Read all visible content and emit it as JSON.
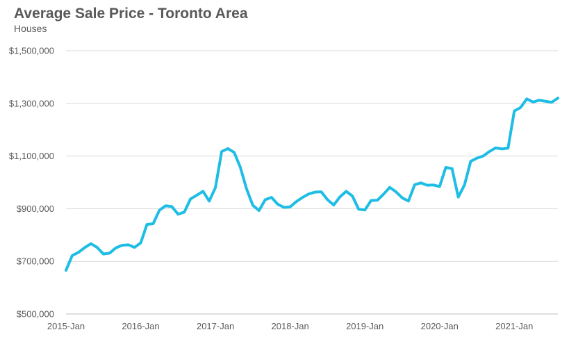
{
  "chart_data": {
    "type": "line",
    "title": "Average Sale Price - Toronto Area",
    "subtitle": "Houses",
    "xlabel": "",
    "ylabel": "",
    "ylim": [
      500000,
      1500000
    ],
    "yticks": [
      500000,
      700000,
      900000,
      1100000,
      1300000,
      1500000
    ],
    "ytick_labels": [
      "$500,000",
      "$700,000",
      "$900,000",
      "$1,100,000",
      "$1,300,000",
      "$1,500,000"
    ],
    "xtick_labels": [
      "2015-Jan",
      "2016-Jan",
      "2017-Jan",
      "2018-Jan",
      "2019-Jan",
      "2020-Jan",
      "2021-Jan"
    ],
    "grid": "horizontal",
    "line_color": "#1ebde5",
    "series": [
      {
        "values": [
          666000,
          722000,
          734000,
          752000,
          767000,
          753000,
          728000,
          731000,
          751000,
          761000,
          763000,
          753000,
          770000,
          840000,
          843000,
          894000,
          911000,
          908000,
          879000,
          887000,
          937000,
          951000,
          966000,
          929000,
          980000,
          1117000,
          1128000,
          1114000,
          1057000,
          975000,
          913000,
          893000,
          934000,
          943000,
          917000,
          905000,
          907000,
          927000,
          943000,
          956000,
          963000,
          964000,
          934000,
          914000,
          945000,
          966000,
          948000,
          898000,
          895000,
          931000,
          932000,
          955000,
          981000,
          964000,
          941000,
          929000,
          991000,
          998000,
          989000,
          990000,
          984000,
          1057000,
          1052000,
          944000,
          990000,
          1080000,
          1092000,
          1100000,
          1117000,
          1131000,
          1127000,
          1130000,
          1271000,
          1284000,
          1317000,
          1305000,
          1312000,
          1308000,
          1304000,
          1320000
        ]
      }
    ]
  }
}
